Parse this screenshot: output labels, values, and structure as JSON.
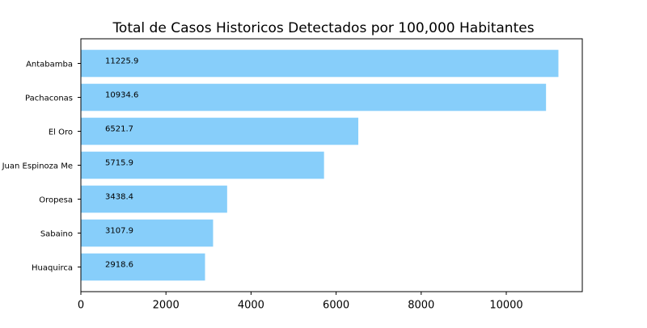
{
  "chart_data": {
    "type": "barh",
    "title": "Total de Casos Historicos Detectados por 100,000 Habitantes",
    "categories": [
      "Antabamba",
      "Pachaconas",
      "El Oro",
      "Juan Espinoza Me",
      "Oropesa",
      "Sabaino",
      "Huaquirca"
    ],
    "values": [
      11225.9,
      10934.6,
      6521.7,
      5715.9,
      3438.4,
      3107.9,
      2918.6
    ],
    "color": "#87cefa",
    "xlim": [
      0,
      11787.2
    ],
    "xticks": [
      0,
      2000,
      4000,
      6000,
      8000,
      10000
    ]
  }
}
